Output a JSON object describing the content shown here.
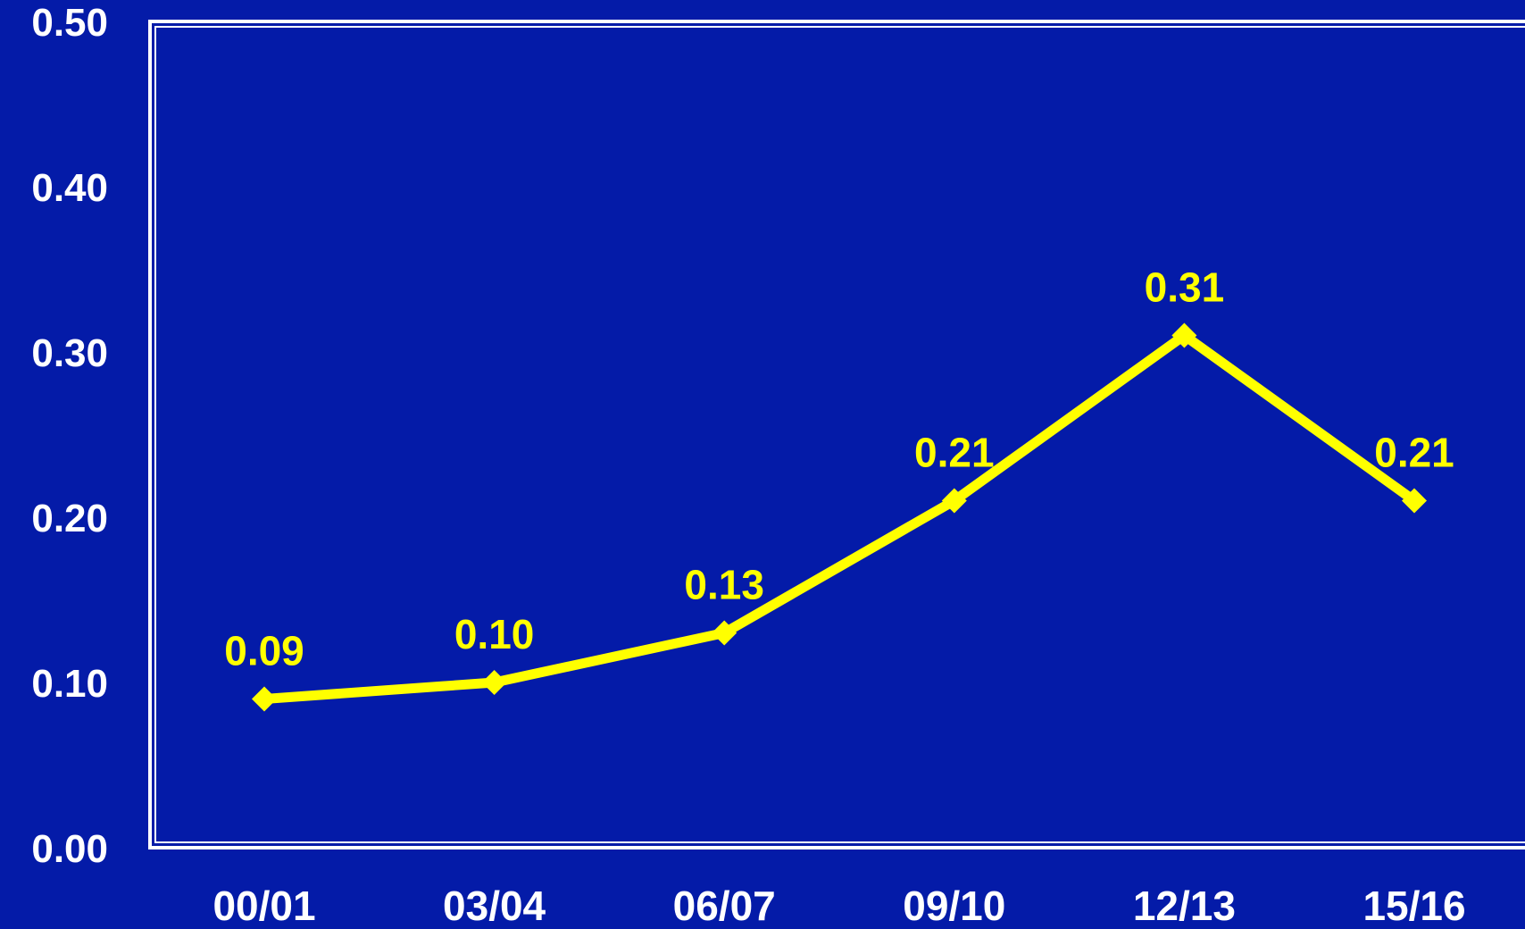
{
  "colors": {
    "background": "#041ba8",
    "axis": "#ffffff",
    "series": "#ffff00"
  },
  "chart_data": {
    "type": "line",
    "title": "",
    "xlabel": "",
    "ylabel": "",
    "categories": [
      "00/01",
      "03/04",
      "06/07",
      "09/10",
      "12/13",
      "15/16"
    ],
    "series": [
      {
        "values": [
          0.09,
          0.1,
          0.13,
          0.21,
          0.31,
          0.21
        ]
      }
    ],
    "data_labels": [
      "0.09",
      "0.10",
      "0.13",
      "0.21",
      "0.31",
      "0.21"
    ],
    "ylim": [
      0,
      0.5
    ],
    "yticks": [
      0.0,
      0.1,
      0.2,
      0.3,
      0.4,
      0.5
    ],
    "ytick_labels": [
      "0.00",
      "0.10",
      "0.20",
      "0.30",
      "0.40",
      "0.50"
    ],
    "marker": "diamond",
    "grid": false,
    "legend": "none"
  }
}
